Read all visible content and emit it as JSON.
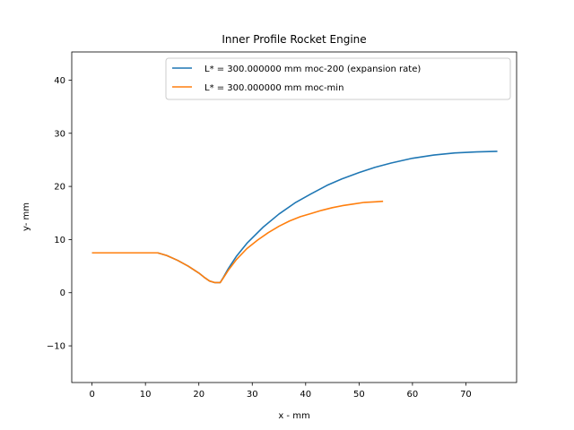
{
  "chart_data": {
    "type": "line",
    "title": "Inner Profile Rocket Engine",
    "xlabel": "x - mm",
    "ylabel": "y- mm",
    "xlim": [
      -3.8,
      79.5
    ],
    "ylim": [
      -16.9,
      45.3
    ],
    "xticks": [
      0,
      10,
      20,
      30,
      40,
      50,
      60,
      70
    ],
    "yticks": [
      -10,
      0,
      10,
      20,
      30,
      40
    ],
    "grid": false,
    "legend_position": "top-right",
    "series": [
      {
        "name": "L* = 300.000000 mm moc-200 (expansion rate)",
        "color": "#1f77b4",
        "x": [
          0,
          12.3,
          14,
          16,
          18,
          20,
          21,
          22,
          23,
          24,
          24.6,
          25.5,
          27,
          29,
          32,
          35,
          38,
          41,
          44,
          47,
          50,
          53,
          56,
          60,
          64,
          68,
          72,
          75.9
        ],
        "y": [
          7.5,
          7.5,
          7.0,
          6.1,
          5.0,
          3.7,
          2.9,
          2.2,
          1.9,
          1.9,
          2.9,
          4.5,
          6.8,
          9.3,
          12.3,
          14.8,
          16.9,
          18.6,
          20.2,
          21.5,
          22.6,
          23.6,
          24.4,
          25.3,
          25.9,
          26.3,
          26.5,
          26.6
        ]
      },
      {
        "name": "L* = 300.000000 mm moc-min",
        "color": "#ff7f0e",
        "x": [
          0,
          12.3,
          14,
          16,
          18,
          20,
          21,
          22,
          23,
          24,
          24.6,
          25.5,
          27,
          29,
          31,
          33,
          35,
          37,
          39,
          41,
          43,
          45,
          47,
          49,
          51,
          53,
          54.5
        ],
        "y": [
          7.5,
          7.5,
          7.0,
          6.1,
          5.0,
          3.7,
          2.9,
          2.2,
          1.9,
          1.9,
          2.8,
          4.2,
          6.2,
          8.3,
          9.9,
          11.3,
          12.5,
          13.5,
          14.3,
          14.9,
          15.5,
          16.0,
          16.4,
          16.7,
          17.0,
          17.1,
          17.2
        ]
      }
    ]
  }
}
